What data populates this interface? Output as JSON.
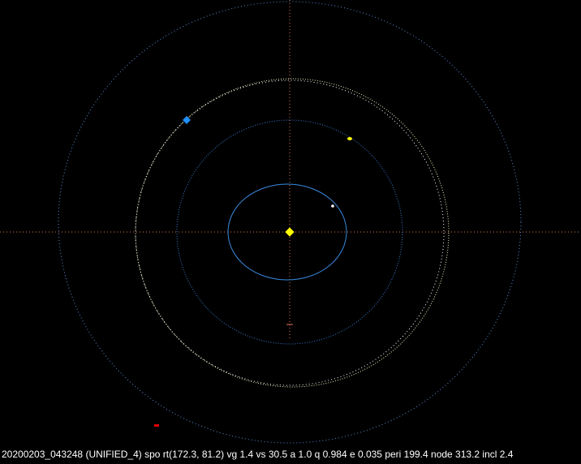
{
  "caption": "20200203_043248 (UNIFIED_4) spo rt(172.3, 81.2) vg 1.4 vs 30.5 a 1.0 q 0.984 e 0.035 peri 199.4 node 313.2 incl 2.4"
}
